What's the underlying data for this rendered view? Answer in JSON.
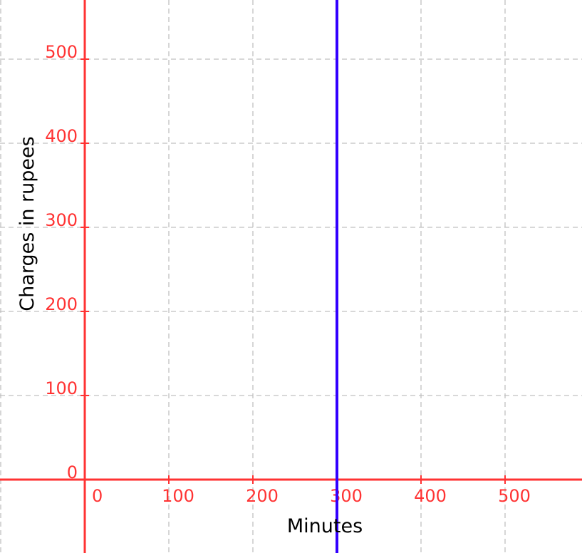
{
  "chart_data": {
    "type": "line",
    "title": "",
    "xlabel": "Minutes",
    "ylabel": "Charges in rupees",
    "xlim": [
      -100,
      591
    ],
    "ylim": [
      -87,
      570
    ],
    "x_ticks": [
      0,
      100,
      200,
      300,
      400,
      500
    ],
    "y_ticks": [
      0,
      100,
      200,
      300,
      400,
      500
    ],
    "x_tick_labels": [
      "0",
      "100",
      "200",
      "300",
      "400",
      "500"
    ],
    "y_tick_labels": [
      "0",
      "100",
      "200",
      "300",
      "400",
      "500"
    ],
    "grid": true,
    "grid_step": 100,
    "series": [
      {
        "kind": "vertical-line",
        "x": 300,
        "color": "#3300ff"
      }
    ],
    "colors": {
      "axes": "#ff3333",
      "ticks": "#ff3333",
      "grid": "#c0c0c0",
      "series": "#3300ff"
    }
  }
}
